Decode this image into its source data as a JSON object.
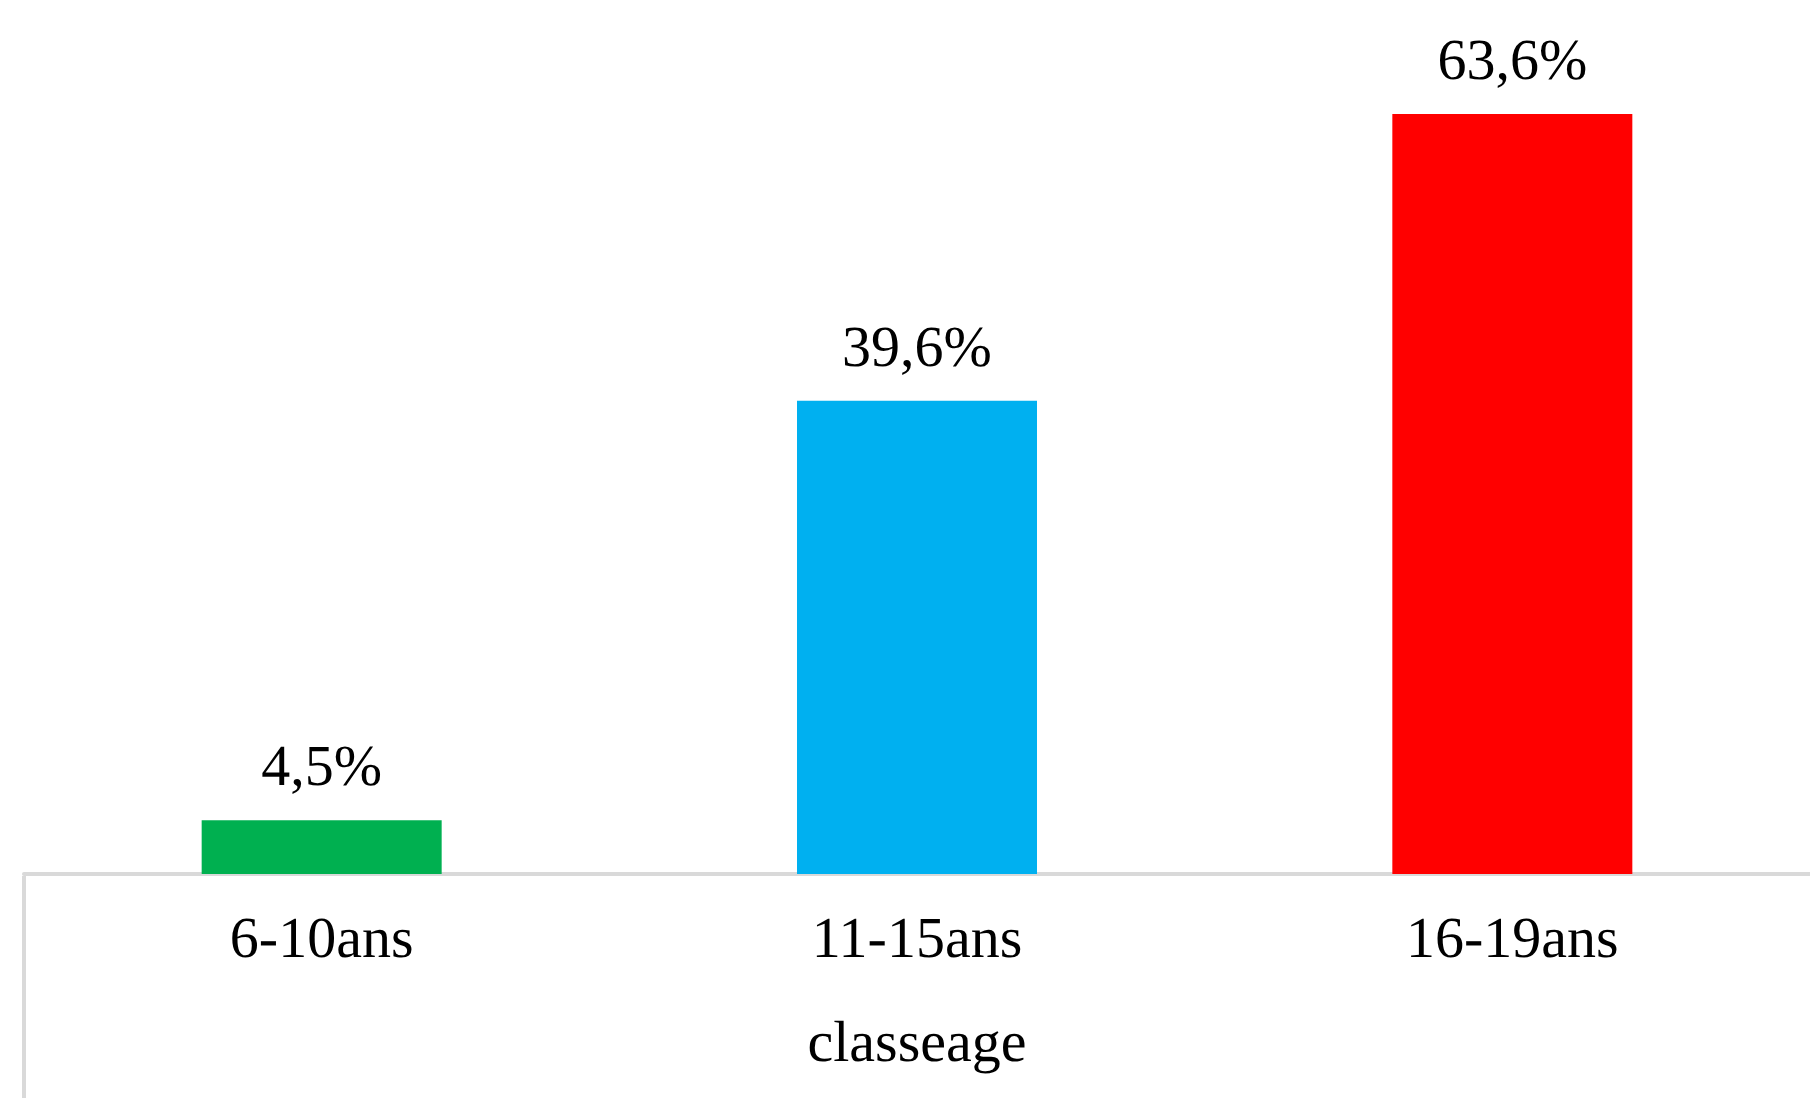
{
  "chart_data": {
    "type": "bar",
    "xlabel": "classeage",
    "categories": [
      "6-10ans",
      "11-15ans",
      "16-19ans"
    ],
    "values": [
      4.5,
      39.6,
      63.6
    ],
    "colors": [
      "#00b050",
      "#00b0f0",
      "#ff0000"
    ],
    "value_labels": [
      "4,5%",
      "39,6%",
      "63,6%"
    ],
    "tick_labels": "x"
  }
}
